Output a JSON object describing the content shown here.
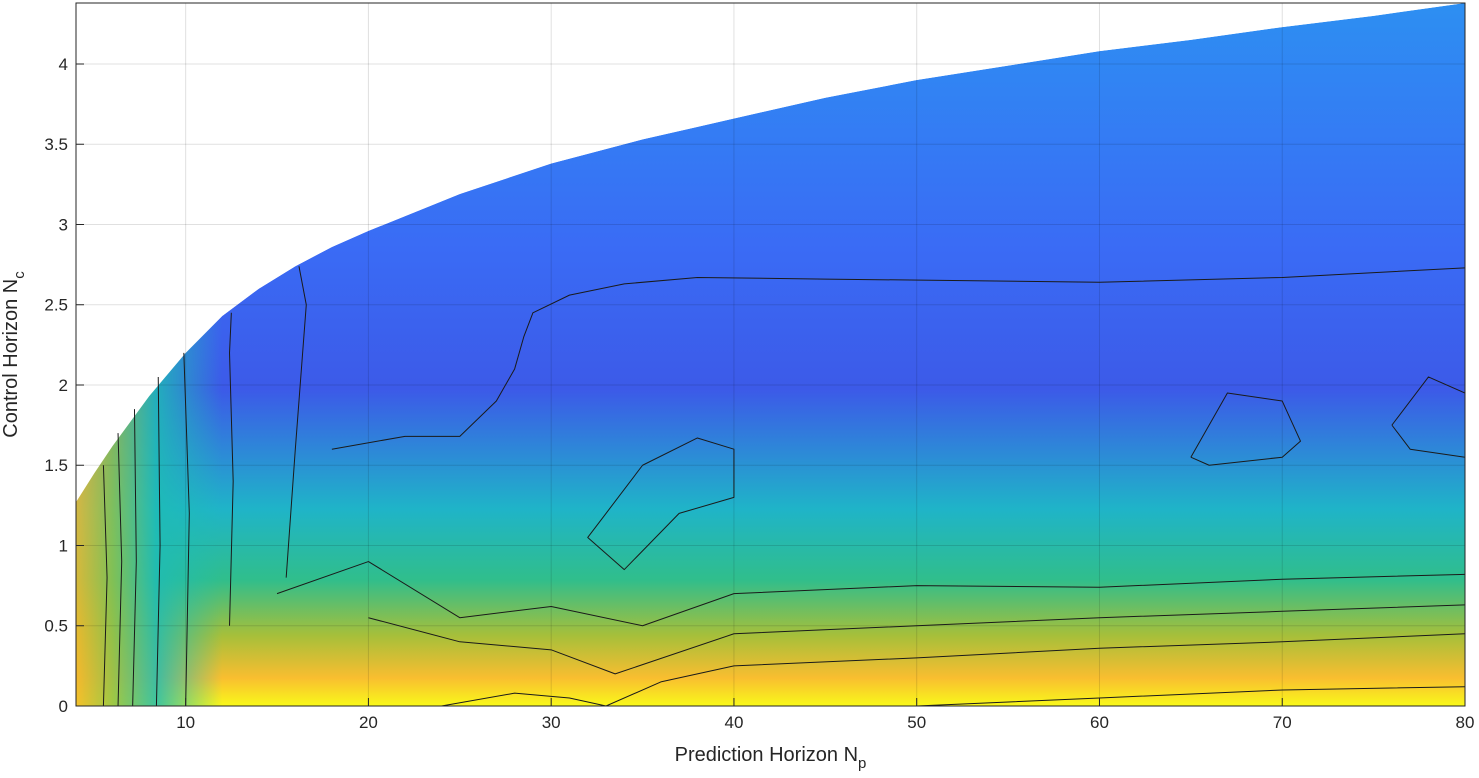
{
  "chart_data": {
    "type": "heatmap",
    "subtype": "filled-contour",
    "colormap": "parula",
    "xlabel": {
      "text": "Prediction Horizon N",
      "subscript": "p"
    },
    "ylabel": {
      "text": "Control Horizon N",
      "subscript": "c"
    },
    "xlim": [
      4,
      80
    ],
    "ylim": [
      0,
      4.38
    ],
    "xticks": [
      10,
      20,
      30,
      40,
      50,
      60,
      70,
      80
    ],
    "xtick_labels": [
      "10",
      "20",
      "30",
      "40",
      "50",
      "60",
      "70",
      "80"
    ],
    "yticks": [
      0,
      0.5,
      1,
      1.5,
      2,
      2.5,
      3,
      3.5,
      4
    ],
    "ytick_labels": [
      "0",
      "0.5",
      "1",
      "1.5",
      "2",
      "2.5",
      "3",
      "3.5",
      "4"
    ],
    "grid": true,
    "valid_region_upper_boundary": {
      "x": [
        4,
        5,
        6,
        8,
        10,
        12,
        14,
        16,
        18,
        20,
        25,
        30,
        35,
        40,
        45,
        50,
        55,
        60,
        65,
        70,
        75,
        80
      ],
      "y": [
        1.27,
        1.45,
        1.62,
        1.93,
        2.2,
        2.43,
        2.6,
        2.74,
        2.86,
        2.96,
        3.19,
        3.38,
        3.53,
        3.66,
        3.79,
        3.9,
        3.99,
        4.08,
        4.15,
        4.23,
        4.3,
        4.38
      ]
    },
    "contour_lines": [
      {
        "x": [
          5.5,
          5.7,
          5.5
        ],
        "y": [
          0.0,
          0.8,
          1.5
        ]
      },
      {
        "x": [
          6.3,
          6.5,
          6.3
        ],
        "y": [
          0.0,
          0.9,
          1.7
        ]
      },
      {
        "x": [
          7.1,
          7.3,
          7.2
        ],
        "y": [
          0.0,
          0.9,
          1.85
        ]
      },
      {
        "x": [
          8.4,
          8.6,
          8.5
        ],
        "y": [
          0.0,
          1.0,
          2.05
        ]
      },
      {
        "x": [
          10.0,
          10.2,
          9.9
        ],
        "y": [
          0.0,
          1.2,
          2.2
        ]
      },
      {
        "x": [
          12.4,
          12.6,
          12.4,
          12.5
        ],
        "y": [
          0.5,
          1.4,
          2.2,
          2.45
        ]
      },
      {
        "x": [
          15.5,
          16.0,
          16.6,
          16.2
        ],
        "y": [
          0.8,
          1.6,
          2.5,
          2.74
        ]
      },
      {
        "x": [
          18.0,
          22.0,
          25.0,
          27.0,
          28.0,
          28.5,
          29.0,
          31.0,
          34.0,
          38.0,
          45.0,
          60.0,
          70.0,
          80.0
        ],
        "y": [
          1.6,
          1.68,
          1.68,
          1.9,
          2.1,
          2.3,
          2.45,
          2.56,
          2.63,
          2.67,
          2.66,
          2.64,
          2.67,
          2.73
        ]
      },
      {
        "x": [
          15.0,
          20.0,
          25.0,
          30.0,
          35.0,
          40.0,
          50.0,
          60.0,
          70.0,
          80.0
        ],
        "y": [
          0.7,
          0.9,
          0.55,
          0.62,
          0.5,
          0.7,
          0.75,
          0.74,
          0.79,
          0.82
        ]
      },
      {
        "x": [
          20.0,
          25.0,
          30.0,
          33.5,
          40.0,
          50.0,
          60.0,
          70.0,
          80.0
        ],
        "y": [
          0.55,
          0.4,
          0.35,
          0.2,
          0.45,
          0.5,
          0.55,
          0.59,
          0.63
        ]
      },
      {
        "x": [
          24.0,
          28.0,
          31.0,
          33.0,
          36.0,
          40.0,
          50.0,
          60.0,
          70.0,
          80.0
        ],
        "y": [
          0.0,
          0.08,
          0.05,
          0.0,
          0.15,
          0.25,
          0.3,
          0.36,
          0.4,
          0.45
        ]
      },
      {
        "x": [
          50.0,
          60.0,
          70.0,
          80.0
        ],
        "y": [
          0.0,
          0.05,
          0.1,
          0.12
        ]
      },
      {
        "x": [
          35.0,
          38.0,
          40.0,
          40.0,
          37.0,
          34.0,
          32.0,
          33.0,
          35.0
        ],
        "y": [
          1.5,
          1.67,
          1.6,
          1.3,
          1.2,
          0.85,
          1.05,
          1.2,
          1.5
        ]
      },
      {
        "x": [
          76.0,
          78.0,
          80.0,
          80.0,
          77.0,
          76.0
        ],
        "y": [
          1.75,
          2.05,
          1.95,
          1.55,
          1.6,
          1.75
        ]
      },
      {
        "x": [
          65.0,
          67.0,
          70.0,
          71.0,
          70.0,
          66.0,
          65.0
        ],
        "y": [
          1.55,
          1.95,
          1.9,
          1.65,
          1.55,
          1.5,
          1.55
        ]
      }
    ]
  }
}
